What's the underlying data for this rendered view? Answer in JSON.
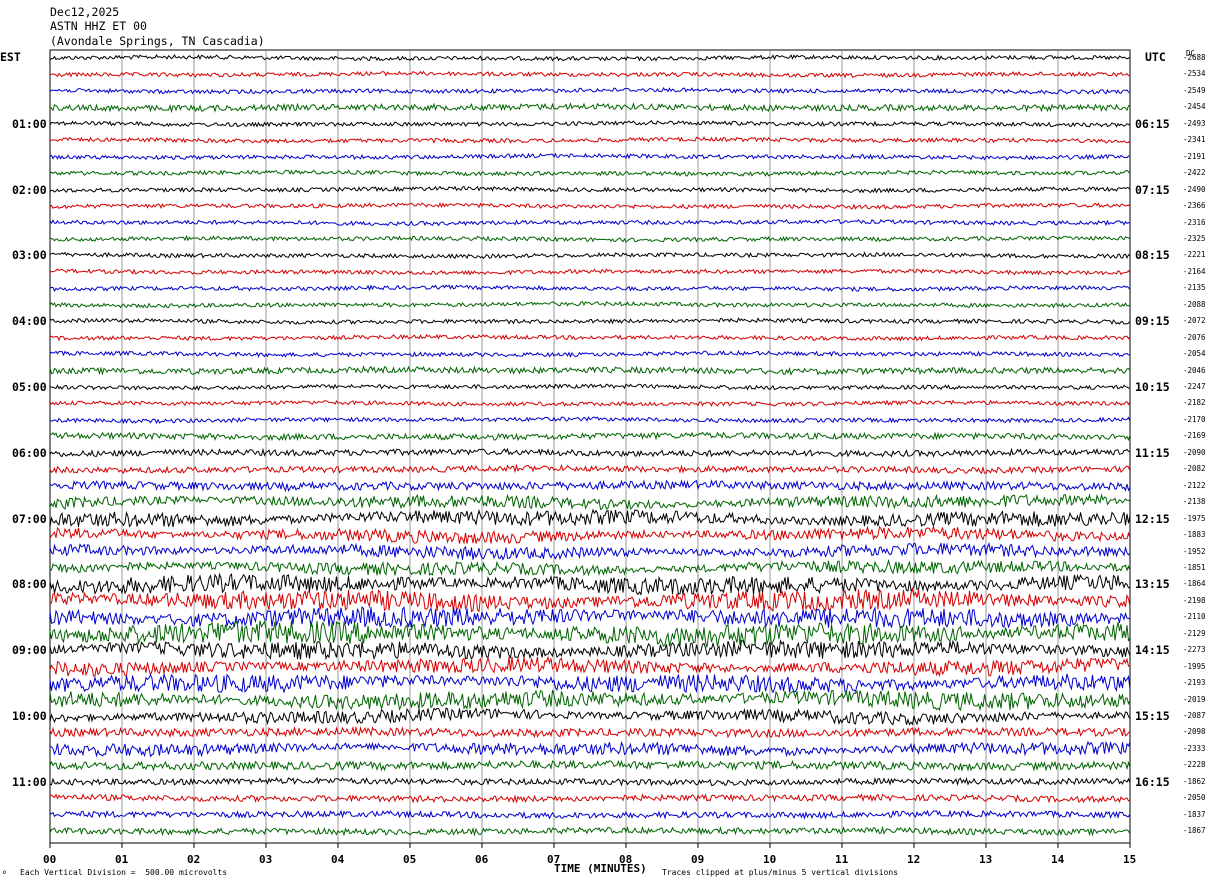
{
  "header": {
    "date": "Dec12,2025",
    "station": "ASTN HHZ ET 00",
    "location": "(Avondale Springs, TN Cascadia)"
  },
  "left_label": "EST",
  "right_label": "UTC",
  "dc_label": "DC",
  "footer": {
    "scale": "Each Vertical Division =  500.00 microvolts",
    "xlabel": "TIME (MINUTES)",
    "clip_note": "Traces clipped at plus/minus 5 vertical divisions",
    "mark": "⌕"
  },
  "colors": {
    "trace_cycle": [
      "#000000",
      "#d40000",
      "#0000cc",
      "#006400"
    ],
    "grid": "#808080"
  },
  "chart_data": {
    "type": "line",
    "title": "ASTN HHZ ET 00",
    "xlabel": "TIME (MINUTES)",
    "xlim": [
      0,
      15
    ],
    "x_ticks": [
      "00",
      "01",
      "02",
      "03",
      "04",
      "05",
      "06",
      "07",
      "08",
      "09",
      "10",
      "11",
      "12",
      "13",
      "14",
      "15"
    ],
    "left_time_labels": [
      "01:00",
      "02:00",
      "03:00",
      "04:00",
      "05:00",
      "06:00",
      "07:00",
      "08:00",
      "09:00",
      "10:00",
      "11:00"
    ],
    "right_time_labels": [
      "06:15",
      "07:15",
      "08:15",
      "09:15",
      "10:15",
      "11:15",
      "12:15",
      "13:15",
      "14:15",
      "15:15",
      "16:15"
    ],
    "dc_offsets": [
      -2688,
      -2534,
      -2549,
      -2454,
      -2493,
      -2341,
      -2191,
      -2422,
      -2490,
      -2366,
      -2316,
      -2325,
      -2221,
      -2164,
      -2135,
      -2088,
      -2072,
      -2076,
      -2054,
      -2046,
      -2247,
      -2182,
      -2170,
      -2169,
      -2090,
      -2082,
      -2122,
      -2138,
      -1975,
      -1883,
      -1952,
      -1851,
      -1864,
      -2198,
      -2110,
      -2129,
      -2273,
      -1995,
      -2193,
      -2019,
      -2087,
      -2098,
      -2333,
      -2228,
      -1862,
      -2050,
      -1837,
      -1867
    ],
    "trace_amplitude": [
      2,
      2,
      2,
      3,
      2,
      2,
      2,
      2,
      2,
      2,
      2,
      2,
      2,
      2,
      2,
      2,
      2,
      2,
      2,
      3,
      2,
      2,
      2,
      3,
      3,
      3,
      4,
      5,
      6,
      5,
      5,
      5,
      7,
      8,
      8,
      9,
      7,
      6,
      7,
      7,
      5,
      4,
      5,
      4,
      3,
      3,
      3,
      3
    ]
  }
}
